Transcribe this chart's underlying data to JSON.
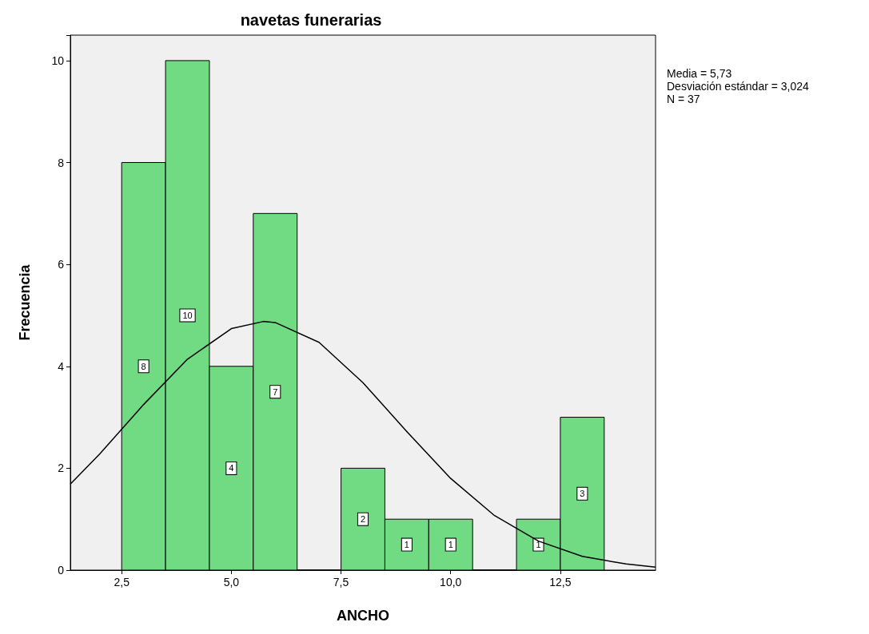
{
  "chart_data": {
    "type": "histogram",
    "title": "navetas funerarias",
    "xlabel": "ANCHO",
    "ylabel": "Frecuencia",
    "annotations": [
      "Media = 5,73",
      "Desviación estándar = 3,024",
      "N = 37"
    ],
    "xlim": [
      1.33,
      14.67
    ],
    "xticks": [
      {
        "value": 2.5,
        "label": "2,5"
      },
      {
        "value": 5,
        "label": "5,0"
      },
      {
        "value": 7.5,
        "label": "7,5"
      },
      {
        "value": 10,
        "label": "10,0"
      },
      {
        "value": 12.5,
        "label": "12,5"
      }
    ],
    "ylim": [
      0,
      10.5
    ],
    "yticks": [
      0,
      2,
      4,
      6,
      8,
      10
    ],
    "grid": false,
    "series": [
      {
        "color": "#70db82",
        "bins": [
          2.5,
          3.5,
          4.5,
          5.5,
          6.5,
          7.5,
          8.5,
          9.5,
          10.5,
          11.5,
          12.5,
          13.5
        ],
        "values": [
          8,
          10,
          4,
          7,
          0,
          2,
          1,
          1,
          0,
          1,
          3
        ],
        "value_labels": [
          "8",
          "10",
          "4",
          "7",
          null,
          "2",
          "1",
          "1",
          null,
          "1",
          "3"
        ]
      },
      {
        "type": "line",
        "color": "#000000",
        "marker": "none",
        "x": [
          1.33,
          2,
          3,
          4,
          5,
          5.73,
          6,
          7,
          8,
          9,
          10,
          11,
          12,
          13,
          14,
          14.67
        ],
        "values": [
          1.69,
          2.28,
          3.25,
          4.14,
          4.74,
          4.88,
          4.86,
          4.47,
          3.68,
          2.72,
          1.8,
          1.07,
          0.57,
          0.27,
          0.12,
          0.06
        ]
      }
    ]
  }
}
